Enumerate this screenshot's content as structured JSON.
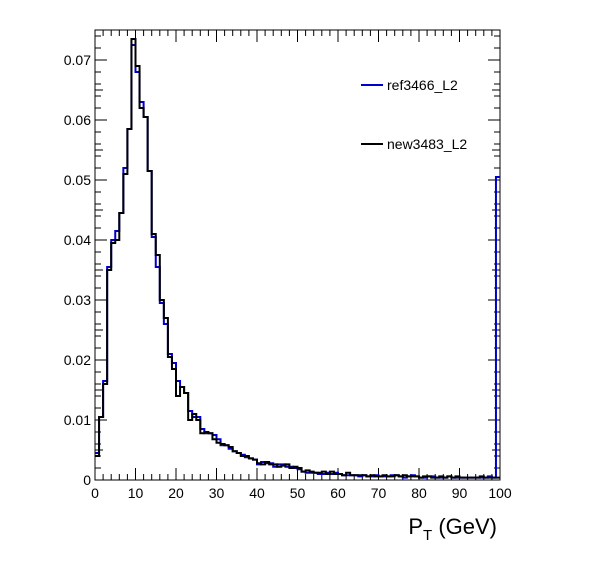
{
  "chart_data": {
    "type": "line",
    "style": "step-histogram",
    "title": "",
    "xlabel": "P",
    "xlabel_subscript": "T",
    "xlabel_unit": " (GeV)",
    "ylabel": "",
    "xlim": [
      0,
      100
    ],
    "ylim": [
      0,
      0.075
    ],
    "grid": false,
    "legend_position": "top-right",
    "bin_width": 1,
    "x_ticks": [
      "0",
      "10",
      "20",
      "30",
      "40",
      "50",
      "60",
      "70",
      "80",
      "90",
      "100"
    ],
    "y_ticks": [
      "0",
      "0.01",
      "0.02",
      "0.03",
      "0.04",
      "0.05",
      "0.06",
      "0.07"
    ],
    "series": [
      {
        "name": "ref3466_L2",
        "color": "#0000cc",
        "values": [
          0.0045,
          0.0105,
          0.0165,
          0.0355,
          0.04,
          0.0415,
          0.0445,
          0.052,
          0.0585,
          0.0725,
          0.068,
          0.063,
          0.0605,
          0.0515,
          0.0405,
          0.0355,
          0.0295,
          0.026,
          0.021,
          0.0195,
          0.0165,
          0.0155,
          0.0145,
          0.0115,
          0.0105,
          0.0105,
          0.0085,
          0.0078,
          0.0078,
          0.0075,
          0.0068,
          0.0058,
          0.0058,
          0.0052,
          0.0048,
          0.0045,
          0.0042,
          0.0038,
          0.0036,
          0.0034,
          0.0026,
          0.003,
          0.0028,
          0.0028,
          0.0022,
          0.0026,
          0.0026,
          0.0022,
          0.0022,
          0.002,
          0.0018,
          0.0014,
          0.0012,
          0.0012,
          0.0012,
          0.001,
          0.001,
          0.0012,
          0.001,
          0.0012,
          0.001,
          0.0008,
          0.0008,
          0.0008,
          0.0008,
          0.0006,
          0.0008,
          0.0006,
          0.0006,
          0.0008,
          0.0006,
          0.0006,
          0.0006,
          0.0008,
          0.0008,
          0.0006,
          0.0004,
          0.0006,
          0.0008,
          0.0006,
          0.0004,
          0.0004,
          0.0006,
          0.0006,
          0.0004,
          0.0004,
          0.0004,
          0.0006,
          0.0004,
          0.0004,
          0.0004,
          0.0004,
          0.0004,
          0.0004,
          0.0004,
          0.0004,
          0.0004,
          0.0006,
          0.0004,
          0.0505
        ]
      },
      {
        "name": "new3483_L2",
        "color": "#000000",
        "values": [
          0.004,
          0.0105,
          0.016,
          0.035,
          0.0395,
          0.04,
          0.0445,
          0.051,
          0.0585,
          0.0735,
          0.069,
          0.062,
          0.0605,
          0.0515,
          0.041,
          0.0375,
          0.03,
          0.027,
          0.0205,
          0.0185,
          0.014,
          0.0155,
          0.0145,
          0.01,
          0.011,
          0.01,
          0.0078,
          0.008,
          0.0078,
          0.0068,
          0.0062,
          0.006,
          0.0058,
          0.0055,
          0.0048,
          0.0045,
          0.004,
          0.004,
          0.0036,
          0.0034,
          0.0028,
          0.0026,
          0.003,
          0.0026,
          0.0026,
          0.0022,
          0.0024,
          0.0026,
          0.002,
          0.0022,
          0.002,
          0.0014,
          0.0016,
          0.0014,
          0.0012,
          0.0012,
          0.0014,
          0.001,
          0.0014,
          0.001,
          0.001,
          0.0008,
          0.0012,
          0.0008,
          0.0008,
          0.0008,
          0.0008,
          0.0006,
          0.0008,
          0.0006,
          0.0006,
          0.0008,
          0.0006,
          0.0006,
          0.0008,
          0.0006,
          0.0008,
          0.0006,
          0.0006,
          0.0006,
          0.0004,
          0.0006,
          0.0006,
          0.0004,
          0.0004,
          0.0006,
          0.0004,
          0.0006,
          0.0004,
          0.0006,
          0.0004,
          0.0004,
          0.0004,
          0.0004,
          0.0004,
          0.0006,
          0.0004,
          0.0004,
          0.0004,
          0.0004
        ]
      }
    ]
  }
}
